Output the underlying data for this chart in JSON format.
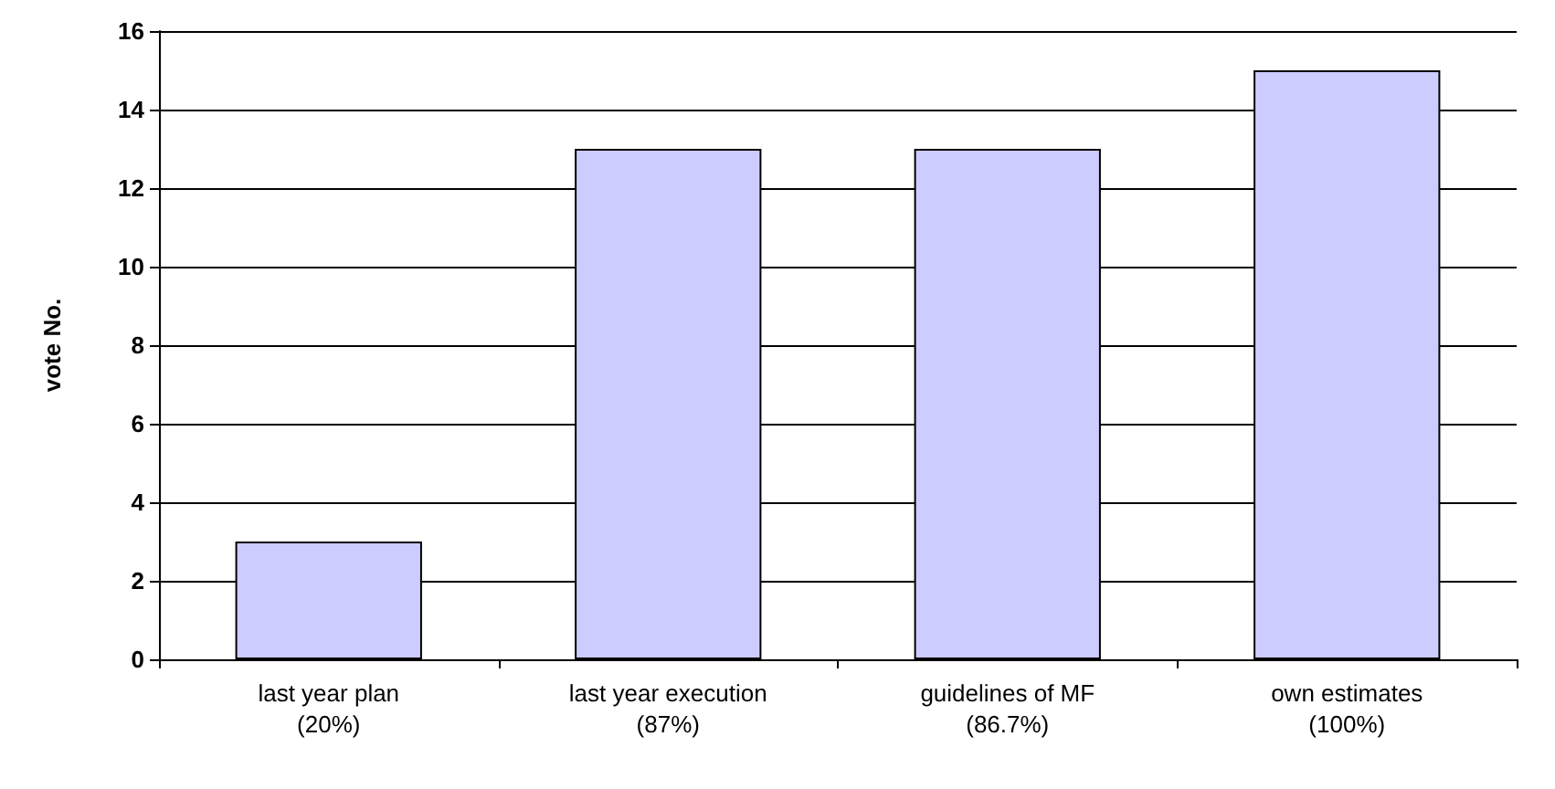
{
  "chart_data": {
    "type": "bar",
    "ylabel": "vote No.",
    "categories": [
      "last year plan\n(20%)",
      "last year execution\n(87%)",
      "guidelines of MF\n(86.7%)",
      "own estimates\n(100%)"
    ],
    "values": [
      3,
      13,
      13,
      15
    ],
    "color": "#ccccff",
    "ylim": [
      0,
      16
    ],
    "yticks": [
      0,
      2,
      4,
      6,
      8,
      10,
      12,
      14,
      16
    ],
    "grid": "y"
  }
}
